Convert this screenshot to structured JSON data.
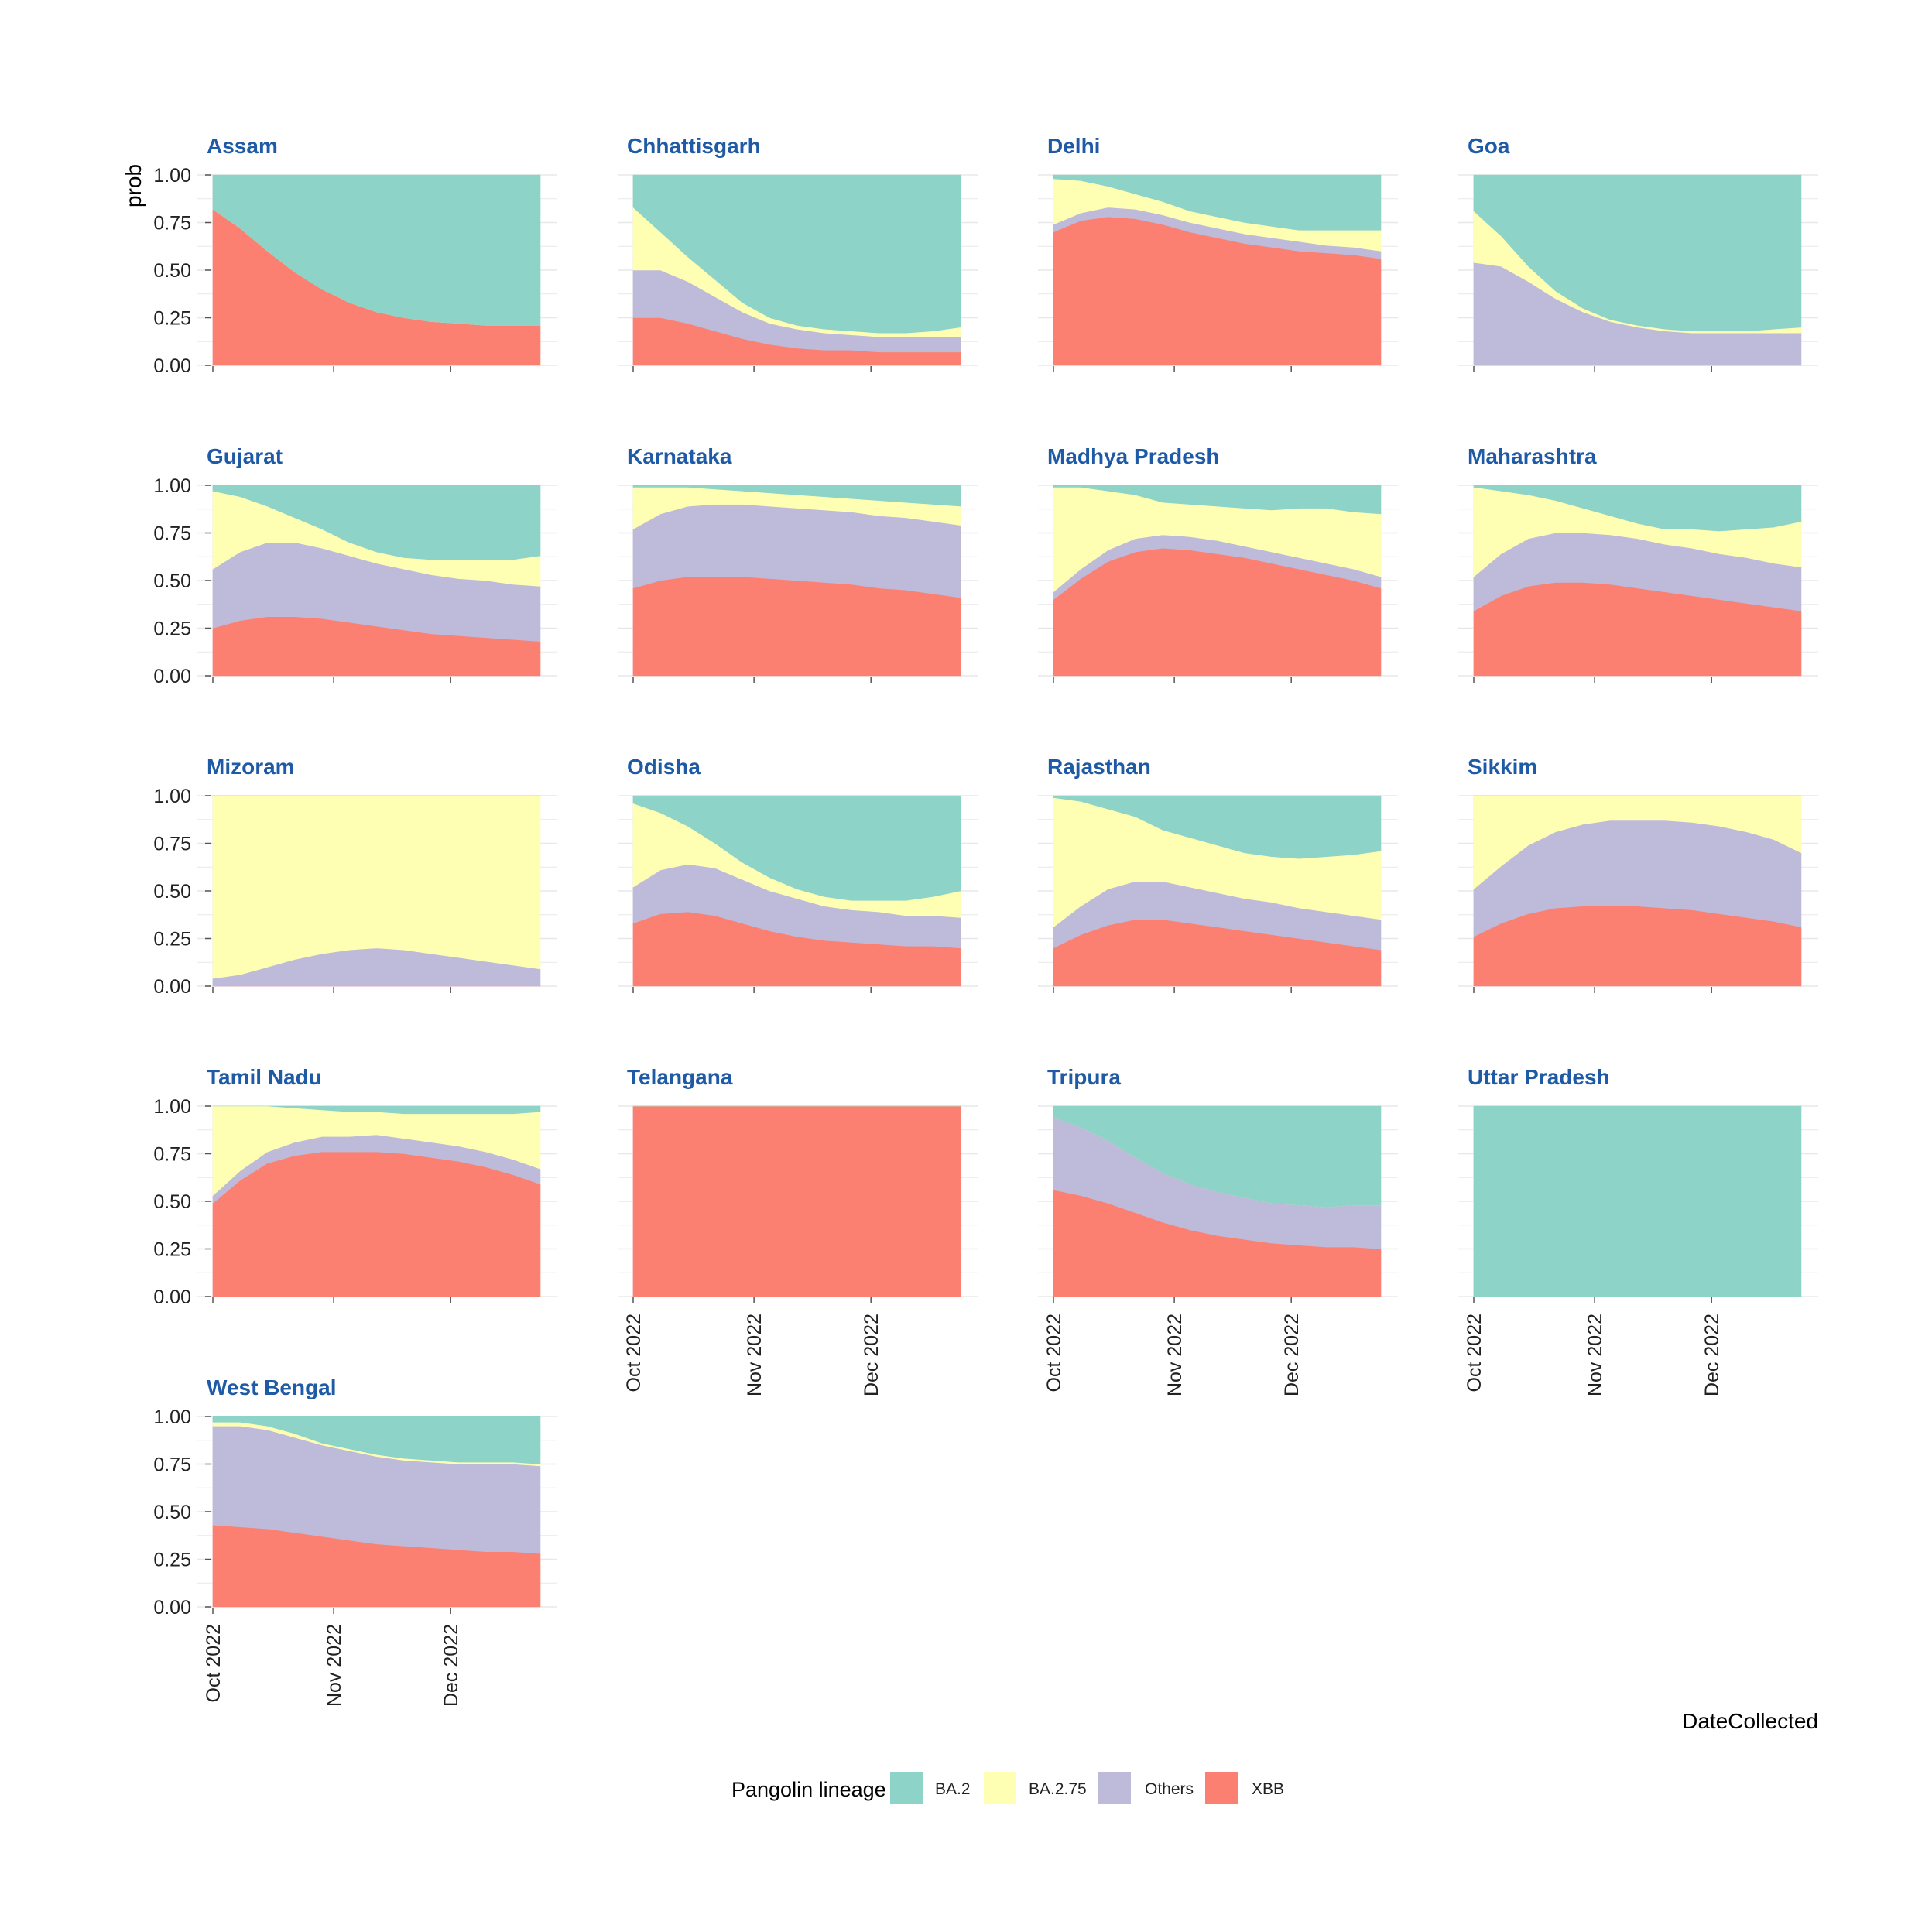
{
  "chart_data": {
    "type": "area",
    "stacked": true,
    "ylabel": "prob",
    "xlabel": "DateCollected",
    "x_ticks": [
      "Oct 2022",
      "Nov 2022",
      "Dec 2022"
    ],
    "y_ticks": [
      "0.00",
      "0.25",
      "0.50",
      "0.75",
      "1.00"
    ],
    "ylim": [
      0,
      1
    ],
    "x": [
      "2022-10-01",
      "2022-10-08",
      "2022-10-15",
      "2022-10-22",
      "2022-10-29",
      "2022-11-05",
      "2022-11-12",
      "2022-11-19",
      "2022-11-26",
      "2022-12-03",
      "2022-12-10",
      "2022-12-17",
      "2022-12-24"
    ],
    "grid": true,
    "legend": {
      "title": "Pangolin lineage",
      "position": "bottom",
      "entries": [
        "BA.2",
        "BA.2.75",
        "Others",
        "XBB"
      ]
    },
    "colors": {
      "BA.2": "#8dd3c7",
      "BA.2.75": "#ffffb3",
      "Others": "#bebada",
      "XBB": "#fb8072"
    },
    "facets": [
      {
        "name": "Assam",
        "series": {
          "XBB": [
            0.82,
            0.72,
            0.6,
            0.49,
            0.4,
            0.33,
            0.28,
            0.25,
            0.23,
            0.22,
            0.21,
            0.21,
            0.21
          ],
          "Others": [
            0,
            0,
            0,
            0,
            0,
            0,
            0,
            0,
            0,
            0,
            0,
            0,
            0
          ],
          "BA.2.75": [
            0,
            0,
            0,
            0,
            0,
            0,
            0,
            0,
            0,
            0,
            0,
            0,
            0
          ],
          "BA.2": [
            0.18,
            0.28,
            0.4,
            0.51,
            0.6,
            0.67,
            0.72,
            0.75,
            0.77,
            0.78,
            0.79,
            0.79,
            0.79
          ]
        }
      },
      {
        "name": "Chhattisgarh",
        "series": {
          "XBB": [
            0.25,
            0.25,
            0.22,
            0.18,
            0.14,
            0.11,
            0.09,
            0.08,
            0.08,
            0.07,
            0.07,
            0.07,
            0.07
          ],
          "Others": [
            0.25,
            0.25,
            0.22,
            0.18,
            0.14,
            0.11,
            0.1,
            0.09,
            0.08,
            0.08,
            0.08,
            0.08,
            0.08
          ],
          "BA.2.75": [
            0.33,
            0.2,
            0.13,
            0.09,
            0.05,
            0.03,
            0.02,
            0.02,
            0.02,
            0.02,
            0.02,
            0.03,
            0.05
          ],
          "BA.2": [
            0.17,
            0.3,
            0.43,
            0.55,
            0.67,
            0.75,
            0.79,
            0.81,
            0.82,
            0.83,
            0.83,
            0.82,
            0.8
          ]
        }
      },
      {
        "name": "Delhi",
        "series": {
          "XBB": [
            0.7,
            0.76,
            0.78,
            0.77,
            0.74,
            0.7,
            0.67,
            0.64,
            0.62,
            0.6,
            0.59,
            0.58,
            0.56
          ],
          "Others": [
            0.04,
            0.04,
            0.05,
            0.05,
            0.05,
            0.05,
            0.05,
            0.05,
            0.05,
            0.05,
            0.04,
            0.04,
            0.04
          ],
          "BA.2.75": [
            0.24,
            0.17,
            0.11,
            0.08,
            0.07,
            0.06,
            0.06,
            0.06,
            0.06,
            0.06,
            0.08,
            0.09,
            0.11
          ],
          "BA.2": [
            0.02,
            0.03,
            0.06,
            0.1,
            0.14,
            0.19,
            0.22,
            0.25,
            0.27,
            0.29,
            0.29,
            0.29,
            0.29
          ]
        }
      },
      {
        "name": "Goa",
        "series": {
          "XBB": [
            0,
            0,
            0,
            0,
            0,
            0,
            0,
            0,
            0,
            0,
            0,
            0,
            0
          ],
          "Others": [
            0.54,
            0.52,
            0.44,
            0.35,
            0.28,
            0.23,
            0.2,
            0.18,
            0.17,
            0.17,
            0.17,
            0.17,
            0.17
          ],
          "BA.2.75": [
            0.27,
            0.16,
            0.08,
            0.04,
            0.02,
            0.01,
            0.01,
            0.01,
            0.01,
            0.01,
            0.01,
            0.02,
            0.03
          ],
          "BA.2": [
            0.19,
            0.32,
            0.48,
            0.61,
            0.7,
            0.76,
            0.79,
            0.81,
            0.82,
            0.82,
            0.82,
            0.81,
            0.8
          ]
        }
      },
      {
        "name": "Gujarat",
        "series": {
          "XBB": [
            0.25,
            0.29,
            0.31,
            0.31,
            0.3,
            0.28,
            0.26,
            0.24,
            0.22,
            0.21,
            0.2,
            0.19,
            0.18
          ],
          "Others": [
            0.31,
            0.36,
            0.39,
            0.39,
            0.37,
            0.35,
            0.33,
            0.32,
            0.31,
            0.3,
            0.3,
            0.29,
            0.29
          ],
          "BA.2.75": [
            0.41,
            0.29,
            0.19,
            0.13,
            0.1,
            0.07,
            0.06,
            0.06,
            0.08,
            0.1,
            0.11,
            0.13,
            0.16
          ],
          "BA.2": [
            0.03,
            0.06,
            0.11,
            0.17,
            0.23,
            0.3,
            0.35,
            0.38,
            0.39,
            0.39,
            0.39,
            0.39,
            0.37
          ]
        }
      },
      {
        "name": "Karnataka",
        "series": {
          "XBB": [
            0.46,
            0.5,
            0.52,
            0.52,
            0.52,
            0.51,
            0.5,
            0.49,
            0.48,
            0.46,
            0.45,
            0.43,
            0.41
          ],
          "Others": [
            0.31,
            0.35,
            0.37,
            0.38,
            0.38,
            0.38,
            0.38,
            0.38,
            0.38,
            0.38,
            0.38,
            0.38,
            0.38
          ],
          "BA.2.75": [
            0.22,
            0.14,
            0.1,
            0.08,
            0.07,
            0.07,
            0.07,
            0.07,
            0.07,
            0.08,
            0.08,
            0.09,
            0.1
          ],
          "BA.2": [
            0.01,
            0.01,
            0.01,
            0.02,
            0.03,
            0.04,
            0.05,
            0.06,
            0.07,
            0.08,
            0.09,
            0.1,
            0.11
          ]
        }
      },
      {
        "name": "Madhya Pradesh",
        "series": {
          "XBB": [
            0.4,
            0.51,
            0.6,
            0.65,
            0.67,
            0.66,
            0.64,
            0.62,
            0.59,
            0.56,
            0.53,
            0.5,
            0.46
          ],
          "Others": [
            0.04,
            0.05,
            0.06,
            0.07,
            0.07,
            0.07,
            0.07,
            0.06,
            0.06,
            0.06,
            0.06,
            0.06,
            0.06
          ],
          "BA.2.75": [
            0.55,
            0.43,
            0.31,
            0.23,
            0.17,
            0.17,
            0.18,
            0.2,
            0.22,
            0.26,
            0.29,
            0.3,
            0.33
          ],
          "BA.2": [
            0.01,
            0.01,
            0.03,
            0.05,
            0.09,
            0.1,
            0.11,
            0.12,
            0.13,
            0.12,
            0.12,
            0.14,
            0.15
          ]
        }
      },
      {
        "name": "Maharashtra",
        "series": {
          "XBB": [
            0.34,
            0.42,
            0.47,
            0.49,
            0.49,
            0.48,
            0.46,
            0.44,
            0.42,
            0.4,
            0.38,
            0.36,
            0.34
          ],
          "Others": [
            0.18,
            0.22,
            0.25,
            0.26,
            0.26,
            0.26,
            0.26,
            0.25,
            0.25,
            0.24,
            0.24,
            0.23,
            0.23
          ],
          "BA.2.75": [
            0.47,
            0.33,
            0.23,
            0.17,
            0.13,
            0.1,
            0.08,
            0.08,
            0.1,
            0.12,
            0.15,
            0.19,
            0.24
          ],
          "BA.2": [
            0.01,
            0.03,
            0.05,
            0.08,
            0.12,
            0.16,
            0.2,
            0.23,
            0.23,
            0.24,
            0.23,
            0.22,
            0.19
          ]
        }
      },
      {
        "name": "Mizoram",
        "series": {
          "XBB": [
            0,
            0,
            0,
            0,
            0,
            0,
            0,
            0,
            0,
            0,
            0,
            0,
            0
          ],
          "Others": [
            0.04,
            0.06,
            0.1,
            0.14,
            0.17,
            0.19,
            0.2,
            0.19,
            0.17,
            0.15,
            0.13,
            0.11,
            0.09
          ],
          "BA.2.75": [
            0.96,
            0.94,
            0.9,
            0.86,
            0.83,
            0.81,
            0.8,
            0.81,
            0.83,
            0.85,
            0.87,
            0.89,
            0.91
          ],
          "BA.2": [
            0,
            0,
            0,
            0,
            0,
            0,
            0,
            0,
            0,
            0,
            0,
            0,
            0
          ]
        }
      },
      {
        "name": "Odisha",
        "series": {
          "XBB": [
            0.33,
            0.38,
            0.39,
            0.37,
            0.33,
            0.29,
            0.26,
            0.24,
            0.23,
            0.22,
            0.21,
            0.21,
            0.2
          ],
          "Others": [
            0.19,
            0.23,
            0.25,
            0.25,
            0.23,
            0.21,
            0.2,
            0.18,
            0.17,
            0.17,
            0.16,
            0.16,
            0.16
          ],
          "BA.2.75": [
            0.44,
            0.3,
            0.2,
            0.13,
            0.09,
            0.07,
            0.05,
            0.05,
            0.05,
            0.06,
            0.08,
            0.1,
            0.14
          ],
          "BA.2": [
            0.04,
            0.09,
            0.16,
            0.25,
            0.35,
            0.43,
            0.49,
            0.53,
            0.55,
            0.55,
            0.55,
            0.53,
            0.5
          ]
        }
      },
      {
        "name": "Rajasthan",
        "series": {
          "XBB": [
            0.2,
            0.27,
            0.32,
            0.35,
            0.35,
            0.33,
            0.31,
            0.29,
            0.27,
            0.25,
            0.23,
            0.21,
            0.19
          ],
          "Others": [
            0.11,
            0.15,
            0.19,
            0.2,
            0.2,
            0.19,
            0.18,
            0.17,
            0.17,
            0.16,
            0.16,
            0.16,
            0.16
          ],
          "BA.2.75": [
            0.68,
            0.55,
            0.42,
            0.34,
            0.27,
            0.26,
            0.25,
            0.24,
            0.24,
            0.26,
            0.29,
            0.32,
            0.36
          ],
          "BA.2": [
            0.01,
            0.03,
            0.07,
            0.11,
            0.18,
            0.22,
            0.26,
            0.3,
            0.32,
            0.33,
            0.32,
            0.31,
            0.29
          ]
        }
      },
      {
        "name": "Sikkim",
        "series": {
          "XBB": [
            0.26,
            0.33,
            0.38,
            0.41,
            0.42,
            0.42,
            0.42,
            0.41,
            0.4,
            0.38,
            0.36,
            0.34,
            0.31
          ],
          "Others": [
            0.25,
            0.3,
            0.36,
            0.4,
            0.43,
            0.45,
            0.45,
            0.46,
            0.46,
            0.46,
            0.45,
            0.43,
            0.39
          ],
          "BA.2.75": [
            0.49,
            0.37,
            0.26,
            0.19,
            0.15,
            0.13,
            0.13,
            0.13,
            0.14,
            0.16,
            0.19,
            0.23,
            0.3
          ],
          "BA.2": [
            0,
            0,
            0,
            0,
            0,
            0,
            0,
            0,
            0,
            0,
            0,
            0,
            0
          ]
        }
      },
      {
        "name": "Tamil Nadu",
        "series": {
          "XBB": [
            0.49,
            0.61,
            0.7,
            0.74,
            0.76,
            0.76,
            0.76,
            0.75,
            0.73,
            0.71,
            0.68,
            0.64,
            0.59
          ],
          "Others": [
            0.04,
            0.05,
            0.06,
            0.07,
            0.08,
            0.08,
            0.09,
            0.08,
            0.08,
            0.08,
            0.08,
            0.08,
            0.08
          ],
          "BA.2.75": [
            0.47,
            0.34,
            0.24,
            0.18,
            0.14,
            0.13,
            0.12,
            0.13,
            0.15,
            0.17,
            0.2,
            0.24,
            0.3
          ],
          "BA.2": [
            0.0,
            0.0,
            0.0,
            0.01,
            0.02,
            0.03,
            0.03,
            0.04,
            0.04,
            0.04,
            0.04,
            0.04,
            0.03
          ]
        }
      },
      {
        "name": "Telangana",
        "series": {
          "XBB": [
            1,
            1,
            1,
            1,
            1,
            1,
            1,
            1,
            1,
            1,
            1,
            1,
            1
          ],
          "Others": [
            0,
            0,
            0,
            0,
            0,
            0,
            0,
            0,
            0,
            0,
            0,
            0,
            0
          ],
          "BA.2.75": [
            0,
            0,
            0,
            0,
            0,
            0,
            0,
            0,
            0,
            0,
            0,
            0,
            0
          ],
          "BA.2": [
            0,
            0,
            0,
            0,
            0,
            0,
            0,
            0,
            0,
            0,
            0,
            0,
            0
          ]
        }
      },
      {
        "name": "Tripura",
        "series": {
          "XBB": [
            0.56,
            0.53,
            0.49,
            0.44,
            0.39,
            0.35,
            0.32,
            0.3,
            0.28,
            0.27,
            0.26,
            0.26,
            0.25
          ],
          "Others": [
            0.38,
            0.36,
            0.33,
            0.29,
            0.26,
            0.24,
            0.23,
            0.22,
            0.21,
            0.21,
            0.21,
            0.22,
            0.23
          ],
          "BA.2.75": [
            0,
            0,
            0,
            0,
            0,
            0,
            0,
            0,
            0,
            0,
            0,
            0,
            0
          ],
          "BA.2": [
            0.06,
            0.11,
            0.18,
            0.27,
            0.35,
            0.41,
            0.45,
            0.48,
            0.51,
            0.52,
            0.53,
            0.52,
            0.52
          ]
        }
      },
      {
        "name": "Uttar Pradesh",
        "series": {
          "XBB": [
            0,
            0,
            0,
            0,
            0,
            0,
            0,
            0,
            0,
            0,
            0,
            0,
            0
          ],
          "Others": [
            0,
            0,
            0,
            0,
            0,
            0,
            0,
            0,
            0,
            0,
            0,
            0,
            0
          ],
          "BA.2.75": [
            0,
            0,
            0,
            0,
            0,
            0,
            0,
            0,
            0,
            0,
            0,
            0,
            0
          ],
          "BA.2": [
            1,
            1,
            1,
            1,
            1,
            1,
            1,
            1,
            1,
            1,
            1,
            1,
            1
          ]
        }
      },
      {
        "name": "West Bengal",
        "series": {
          "XBB": [
            0.43,
            0.42,
            0.41,
            0.39,
            0.37,
            0.35,
            0.33,
            0.32,
            0.31,
            0.3,
            0.29,
            0.29,
            0.28
          ],
          "Others": [
            0.52,
            0.53,
            0.52,
            0.5,
            0.48,
            0.47,
            0.46,
            0.45,
            0.45,
            0.45,
            0.46,
            0.46,
            0.46
          ],
          "BA.2.75": [
            0.02,
            0.02,
            0.02,
            0.02,
            0.01,
            0.01,
            0.01,
            0.01,
            0.01,
            0.01,
            0.01,
            0.01,
            0.01
          ],
          "BA.2": [
            0.03,
            0.03,
            0.05,
            0.09,
            0.14,
            0.17,
            0.2,
            0.22,
            0.23,
            0.24,
            0.24,
            0.24,
            0.25
          ]
        }
      }
    ]
  }
}
